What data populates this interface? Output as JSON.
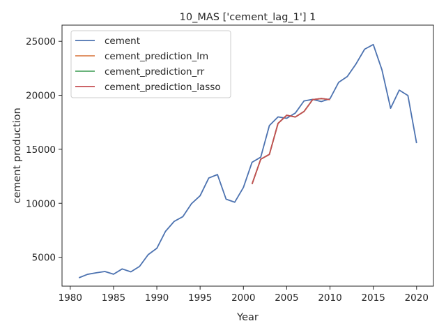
{
  "chart_data": {
    "type": "line",
    "title": "10_MAS ['cement_lag_1'] 1",
    "xlabel": "Year",
    "ylabel": "cement production",
    "xlim": [
      1979.05,
      2021.95
    ],
    "ylim": [
      2325,
      26500
    ],
    "x_ticks": [
      1980,
      1985,
      1990,
      1995,
      2000,
      2005,
      2010,
      2015,
      2020
    ],
    "y_ticks": [
      5000,
      10000,
      15000,
      20000,
      25000
    ],
    "grid": false,
    "legend_position": "top-left",
    "series": [
      {
        "name": "cement",
        "color": "#4c72b0",
        "x": [
          1981,
          1982,
          1983,
          1984,
          1985,
          1986,
          1987,
          1988,
          1989,
          1990,
          1991,
          1992,
          1993,
          1994,
          1995,
          1996,
          1997,
          1998,
          1999,
          2000,
          2001,
          2002,
          2003,
          2004,
          2005,
          2006,
          2007,
          2008,
          2009,
          2010,
          2011,
          2012,
          2013,
          2014,
          2015,
          2016,
          2017,
          2018,
          2019,
          2020
        ],
        "y": [
          3100,
          3420,
          3560,
          3680,
          3430,
          3920,
          3650,
          4150,
          5240,
          5830,
          7400,
          8320,
          8760,
          9960,
          10700,
          12340,
          12660,
          10380,
          10100,
          11470,
          13800,
          14270,
          17200,
          18000,
          17870,
          18360,
          19480,
          19620,
          19420,
          19680,
          21200,
          21740,
          22900,
          24270,
          24700,
          22360,
          18800,
          20480,
          19980,
          15570
        ]
      },
      {
        "name": "cement_prediction_lm",
        "color": "#dd8452",
        "x": [
          2001,
          2002,
          2003,
          2004,
          2005,
          2006,
          2007,
          2008,
          2009,
          2010
        ],
        "y": [
          11780,
          14080,
          14530,
          17400,
          18150,
          17990,
          18500,
          19600,
          19700,
          19600
        ]
      },
      {
        "name": "cement_prediction_rr",
        "color": "#55a868",
        "x": [
          2001,
          2002,
          2003,
          2004,
          2005,
          2006,
          2007,
          2008,
          2009,
          2010
        ],
        "y": [
          11780,
          14080,
          14530,
          17400,
          18150,
          17990,
          18500,
          19600,
          19700,
          19600
        ]
      },
      {
        "name": "cement_prediction_lasso",
        "color": "#c44e52",
        "x": [
          2001,
          2002,
          2003,
          2004,
          2005,
          2006,
          2007,
          2008,
          2009,
          2010
        ],
        "y": [
          11780,
          14080,
          14530,
          17400,
          18150,
          17990,
          18500,
          19600,
          19700,
          19600
        ]
      }
    ]
  }
}
